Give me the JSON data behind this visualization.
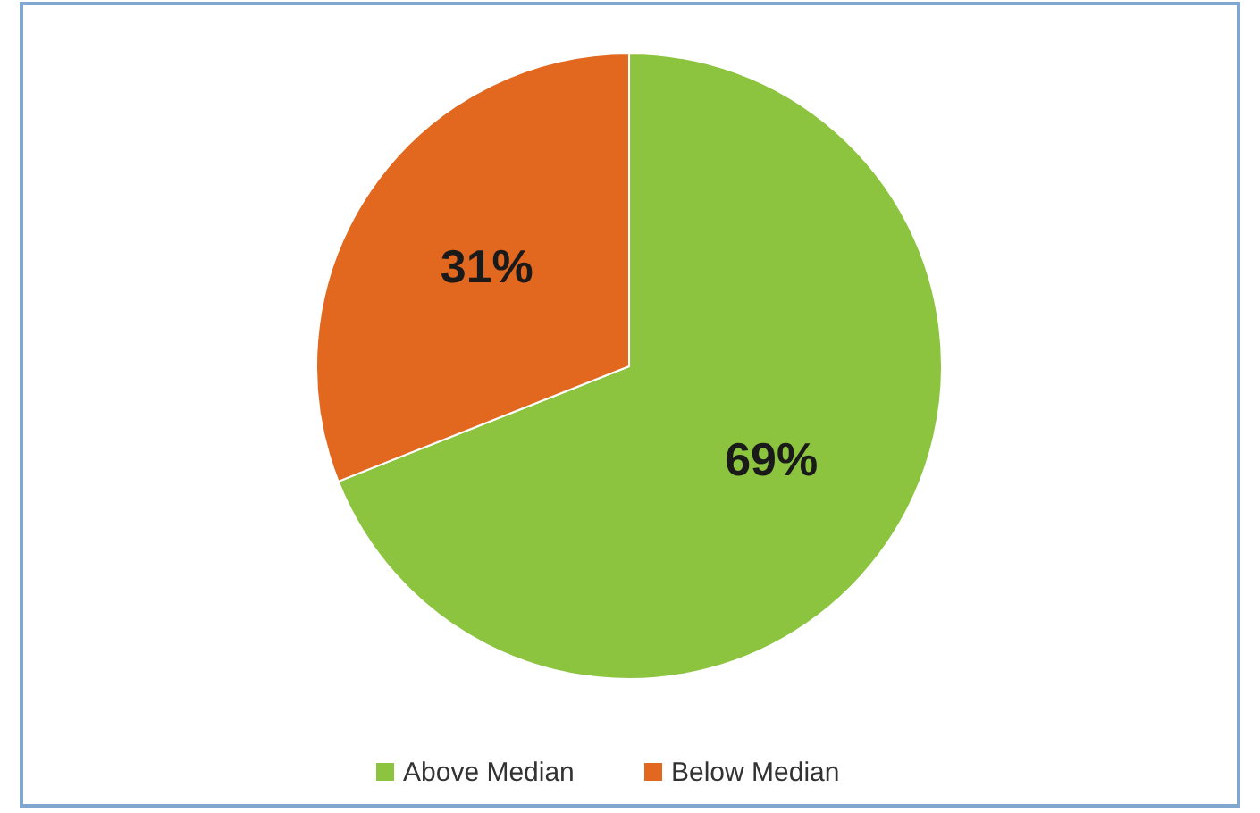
{
  "chart_data": {
    "type": "pie",
    "categories": [
      "Above Median",
      "Below Median"
    ],
    "values": [
      69,
      31
    ],
    "colors": [
      "#8cc43f",
      "#e2681f"
    ],
    "value_labels": [
      "69%",
      "31%"
    ],
    "legend": "bottom"
  }
}
